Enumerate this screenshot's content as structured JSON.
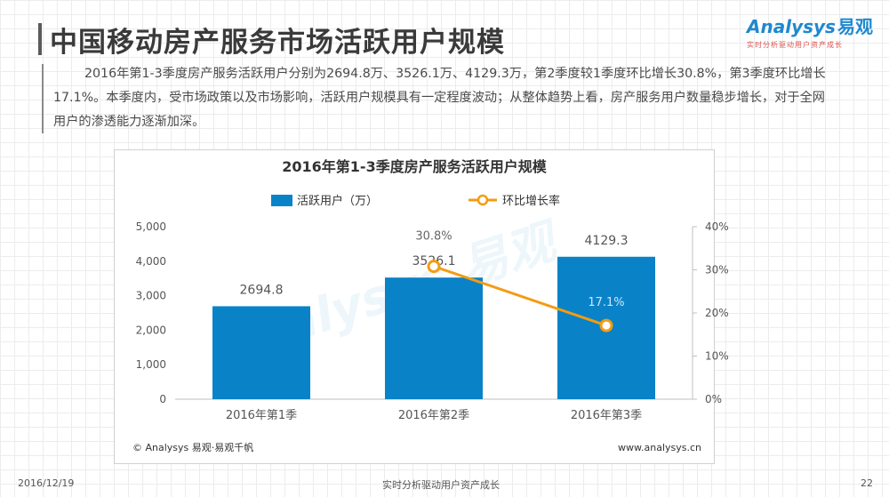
{
  "page": {
    "title": "中国移动房产服务市场活跃用户规模",
    "description": "2016年第1-3季度房产服务活跃用户分别为2694.8万、3526.1万、4129.3万，第2季度较1季度环比增长30.8%，第3季度环比增长17.1%。本季度内，受市场政策以及市场影响，活跃用户规模具有一定程度波动；从整体趋势上看，房产服务用户数量稳步增长，对于全网用户的渗透能力逐渐加深。"
  },
  "logo": {
    "name": "Analysys",
    "name_cn": "易观",
    "tagline": "实时分析驱动用户资产成长"
  },
  "footer": {
    "date": "2016/12/19",
    "center": "实时分析驱动用户资产成长",
    "page": "22"
  },
  "chart_data": {
    "type": "bar",
    "title": "2016年第1-3季度房产服务活跃用户规模",
    "categories": [
      "2016年第1季",
      "2016年第2季",
      "2016年第3季"
    ],
    "series": [
      {
        "name": "活跃用户（万）",
        "type": "bar",
        "axis": "left",
        "color": "#0a82c8",
        "values": [
          2694.8,
          3526.1,
          4129.3
        ],
        "labels": [
          "2694.8",
          "3526.1",
          "4129.3"
        ]
      },
      {
        "name": "环比增长率",
        "type": "line",
        "axis": "right",
        "color": "#f39c12",
        "values": [
          null,
          30.8,
          17.1
        ],
        "labels": [
          "",
          "30.8%",
          "17.1%"
        ]
      }
    ],
    "y_left": {
      "min": 0,
      "max": 5000,
      "ticks": [
        0,
        1000,
        2000,
        3000,
        4000,
        5000
      ],
      "tick_labels": [
        "0",
        "1,000",
        "2,000",
        "3,000",
        "4,000",
        "5,000"
      ]
    },
    "y_right": {
      "min": 0,
      "max": 40,
      "ticks": [
        0,
        10,
        20,
        30,
        40
      ],
      "tick_labels": [
        "0%",
        "10%",
        "20%",
        "30%",
        "40%"
      ]
    },
    "legend_position": "top",
    "grid": false,
    "watermark": "Analysys 易观",
    "source": "© Analysys 易观·易观千帆",
    "url": "www.analysys.cn"
  }
}
